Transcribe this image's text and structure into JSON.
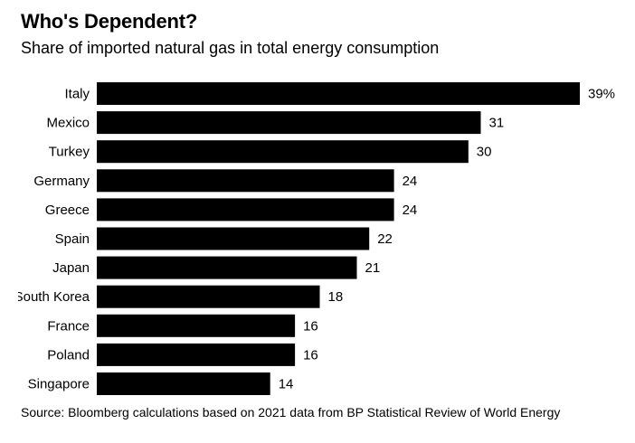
{
  "header": {
    "title": "Who's Dependent?",
    "subtitle": "Share of imported natural gas in total energy consumption"
  },
  "chart_data": {
    "type": "bar",
    "orientation": "horizontal",
    "title": "Who's Dependent?",
    "subtitle": "Share of imported natural gas in total energy consumption",
    "categories": [
      "Italy",
      "Mexico",
      "Turkey",
      "Germany",
      "Greece",
      "Spain",
      "Japan",
      "South Korea",
      "France",
      "Poland",
      "Singapore"
    ],
    "values": [
      39,
      31,
      30,
      24,
      24,
      22,
      21,
      18,
      16,
      16,
      14
    ],
    "value_labels": [
      "39%",
      "31",
      "30",
      "24",
      "24",
      "22",
      "21",
      "18",
      "16",
      "16",
      "14"
    ],
    "xlim": [
      0,
      39
    ],
    "bar_color": "#000000",
    "grid": false,
    "legend": "none"
  },
  "footer": {
    "source": "Source: Bloomberg calculations based on 2021 data from BP Statistical Review of World Energy"
  }
}
